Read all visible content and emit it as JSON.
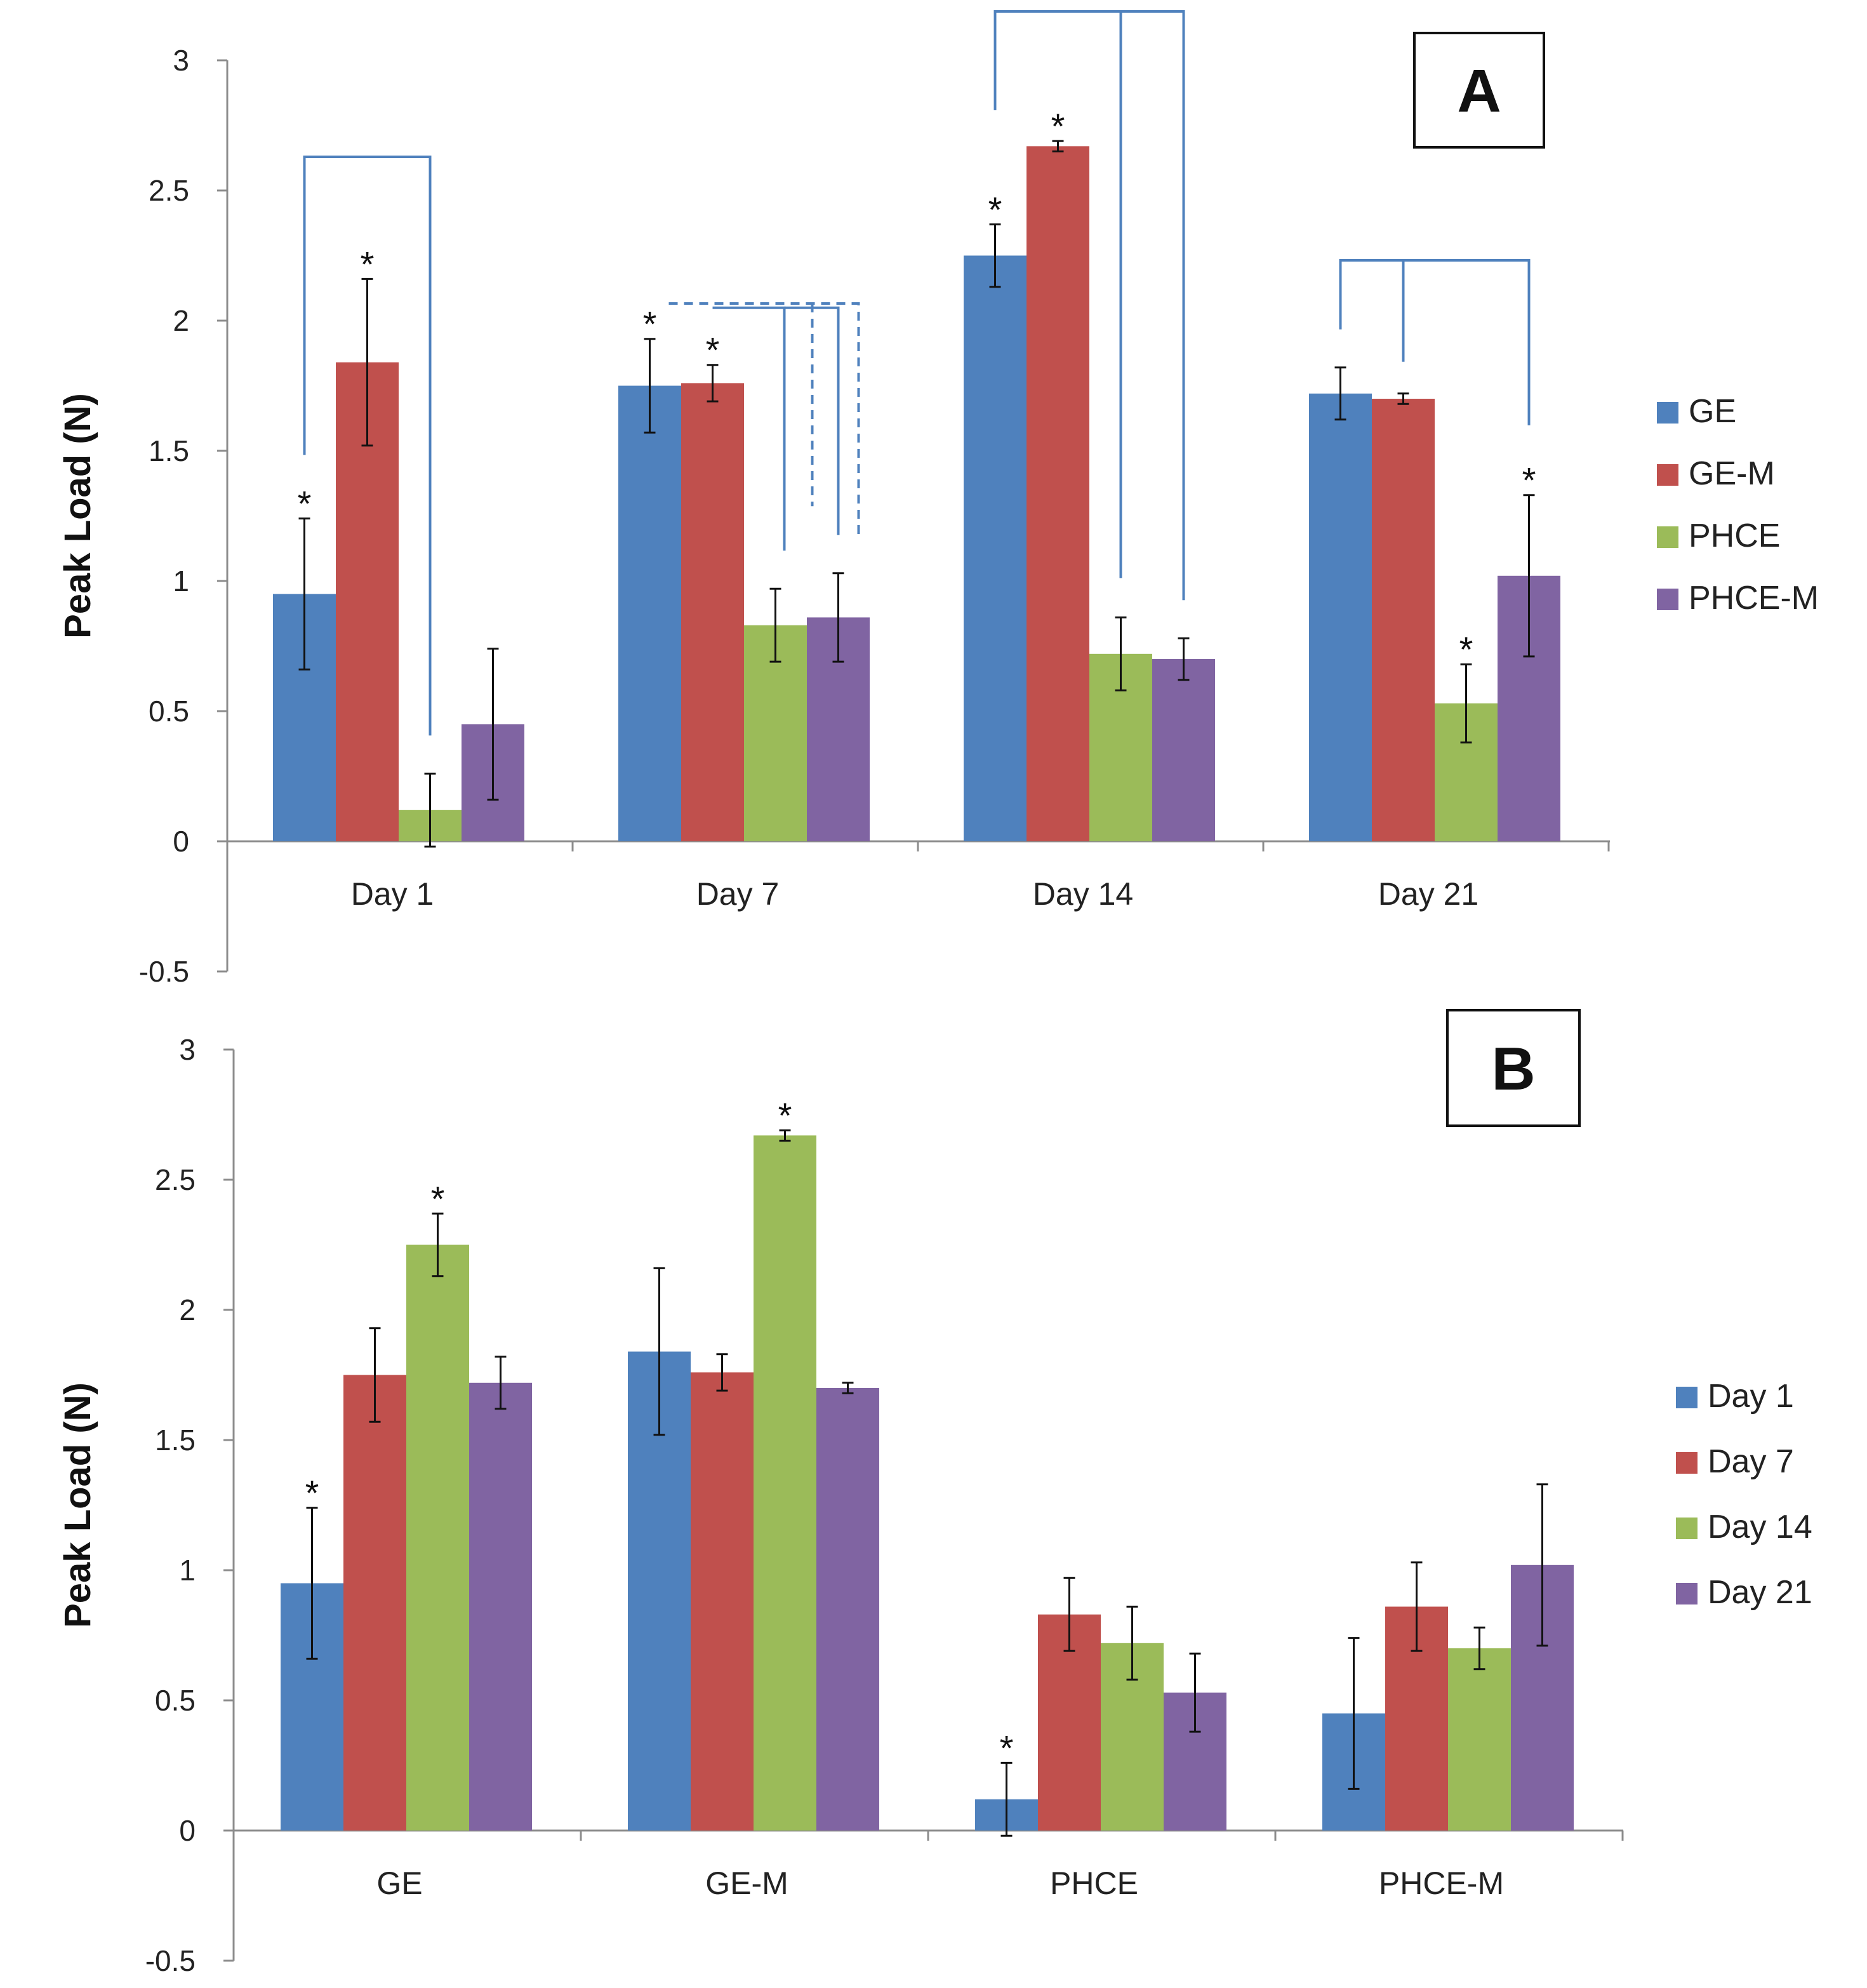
{
  "chart_data": [
    {
      "panel": "A",
      "type": "bar",
      "title": "",
      "ylabel": "Peak Load (N)",
      "xlabel": "",
      "ylim": [
        -0.5,
        3
      ],
      "yticks": [
        3,
        2.5,
        2,
        1.5,
        1,
        0.5,
        0,
        -0.5
      ],
      "ytick_labels": [
        "3",
        "2.5",
        "2",
        "1.5",
        "1",
        "0.5",
        "0",
        "-0.5"
      ],
      "categories": [
        "Day 1",
        "Day 7",
        "Day 14",
        "Day 21"
      ],
      "legend_position": "right",
      "series": [
        {
          "name": "GE",
          "color": "#4f81bd",
          "values": [
            0.95,
            1.75,
            2.25,
            1.72
          ],
          "errors": [
            0.29,
            0.18,
            0.12,
            0.1
          ],
          "stars": [
            true,
            true,
            true,
            false
          ]
        },
        {
          "name": "GE-M",
          "color": "#c0504d",
          "values": [
            1.84,
            1.76,
            2.67,
            1.7
          ],
          "errors": [
            0.32,
            0.07,
            0.02,
            0.02
          ],
          "stars": [
            true,
            true,
            true,
            false
          ]
        },
        {
          "name": "PHCE",
          "color": "#9bbb59",
          "values": [
            0.12,
            0.83,
            0.72,
            0.53
          ],
          "errors": [
            0.14,
            0.14,
            0.14,
            0.15
          ],
          "stars": [
            false,
            false,
            false,
            true
          ]
        },
        {
          "name": "PHCE-M",
          "color": "#8064a2",
          "values": [
            0.45,
            0.86,
            0.7,
            1.02
          ],
          "errors": [
            0.29,
            0.17,
            0.08,
            0.31
          ],
          "stars": [
            false,
            false,
            false,
            true
          ]
        }
      ],
      "star_symbol": "*"
    },
    {
      "panel": "B",
      "type": "bar",
      "title": "",
      "ylabel": "Peak Load (N)",
      "xlabel": "",
      "ylim": [
        -0.5,
        3
      ],
      "yticks": [
        3,
        2.5,
        2,
        1.5,
        1,
        0.5,
        0,
        -0.5
      ],
      "ytick_labels": [
        "3",
        "2.5",
        "2",
        "1.5",
        "1",
        "0.5",
        "0",
        "-0.5"
      ],
      "categories": [
        "GE",
        "GE-M",
        "PHCE",
        "PHCE-M"
      ],
      "legend_position": "right",
      "series": [
        {
          "name": "Day 1",
          "color": "#4f81bd",
          "values": [
            0.95,
            1.84,
            0.12,
            0.45
          ],
          "errors": [
            0.29,
            0.32,
            0.14,
            0.29
          ],
          "stars": [
            true,
            false,
            true,
            false
          ]
        },
        {
          "name": "Day 7",
          "color": "#c0504d",
          "values": [
            1.75,
            1.76,
            0.83,
            0.86
          ],
          "errors": [
            0.18,
            0.07,
            0.14,
            0.17
          ],
          "stars": [
            false,
            false,
            false,
            false
          ]
        },
        {
          "name": "Day 14",
          "color": "#9bbb59",
          "values": [
            2.25,
            2.67,
            0.72,
            0.7
          ],
          "errors": [
            0.12,
            0.02,
            0.14,
            0.08
          ],
          "stars": [
            true,
            true,
            false,
            false
          ]
        },
        {
          "name": "Day 21",
          "color": "#8064a2",
          "values": [
            1.72,
            1.7,
            0.53,
            1.02
          ],
          "errors": [
            0.1,
            0.02,
            0.15,
            0.31
          ],
          "stars": [
            false,
            false,
            false,
            false
          ]
        }
      ],
      "star_symbol": "*"
    }
  ],
  "bracket_color": "#4f81bd"
}
